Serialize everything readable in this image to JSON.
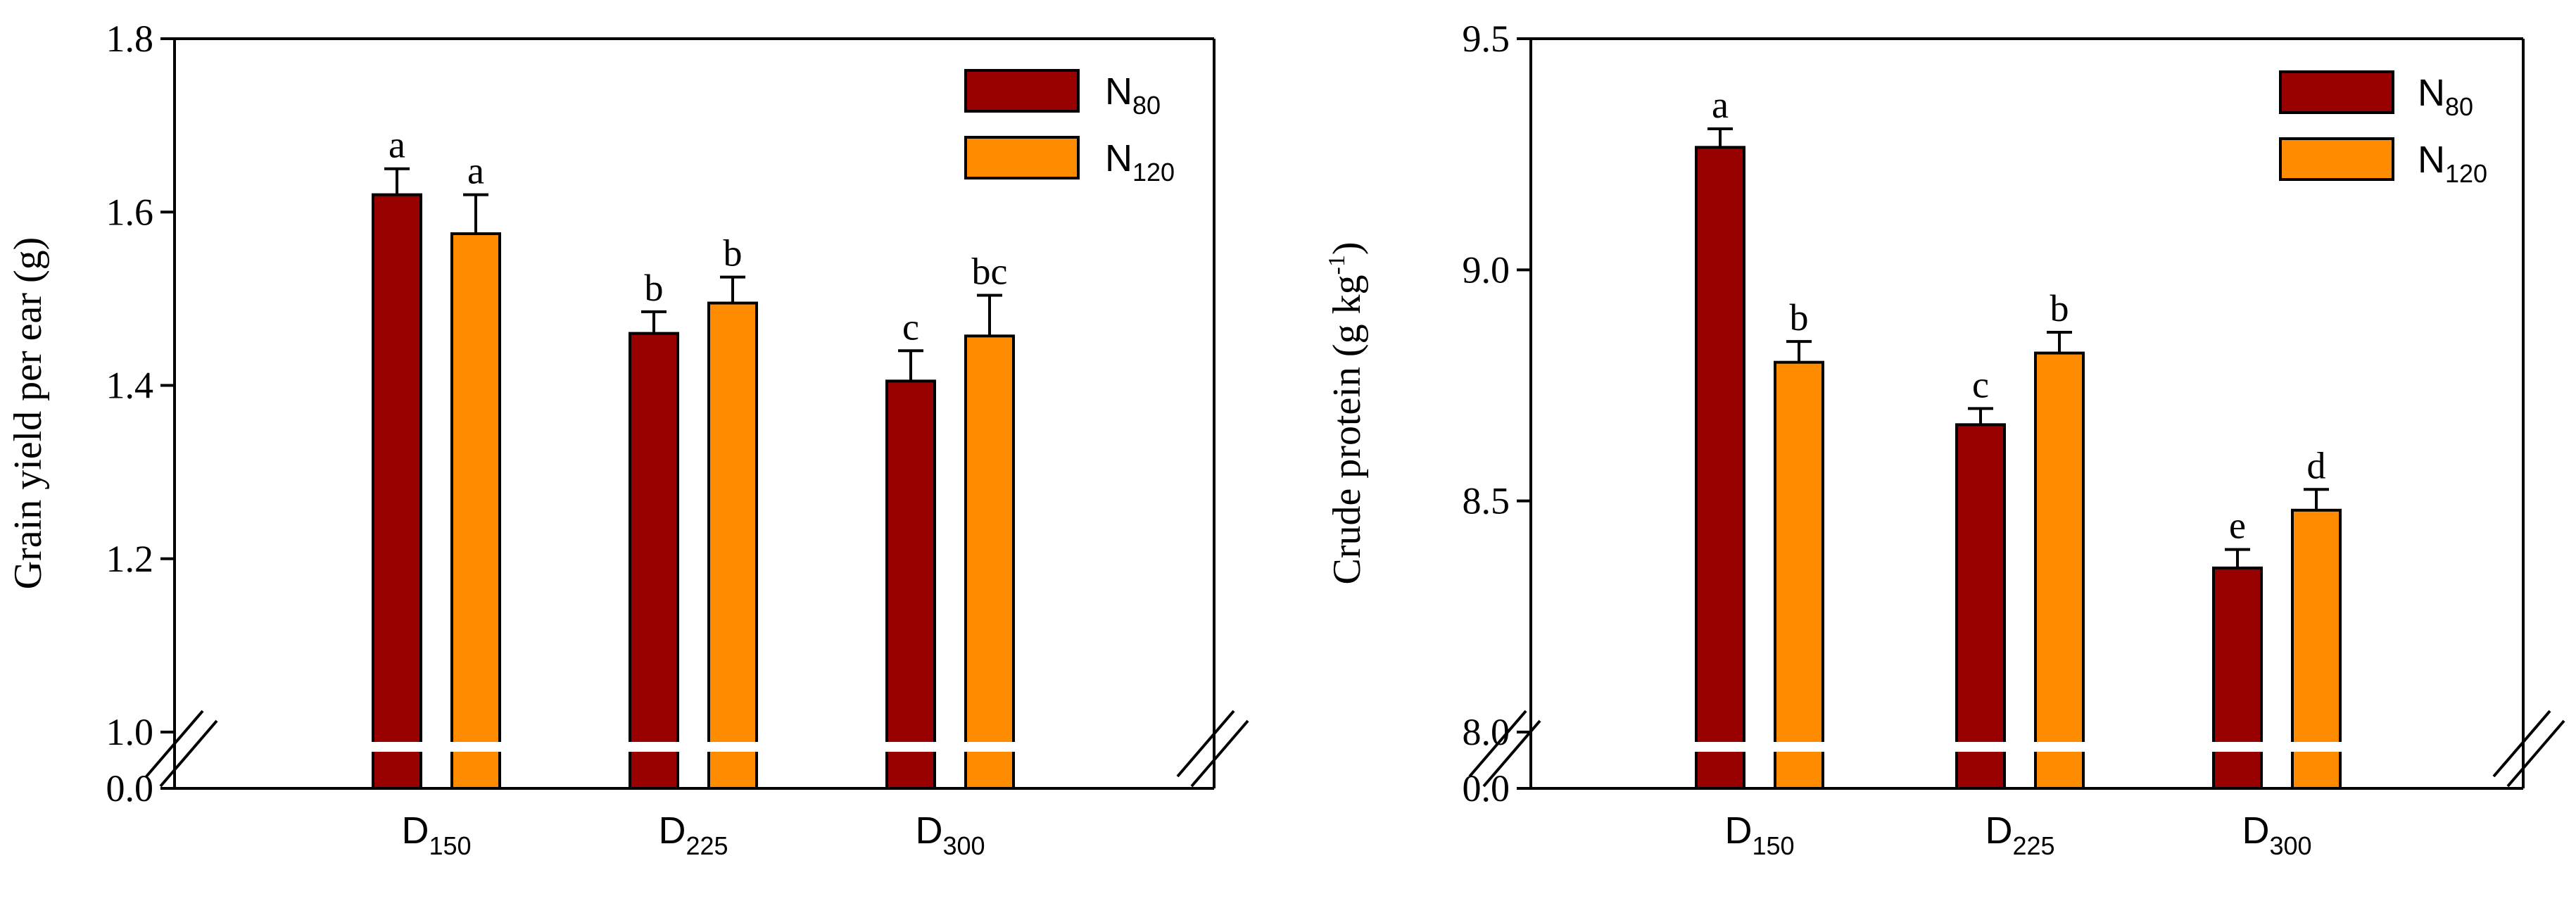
{
  "chart_data": [
    {
      "type": "bar",
      "ylabel": "Grain yield per ear (g)",
      "y_break": {
        "below": 0.0,
        "above": 1.0
      },
      "ylim": [
        1.0,
        1.8
      ],
      "yticks": [
        1.0,
        1.2,
        1.4,
        1.6,
        1.8
      ],
      "ytick_labels": [
        "1.0",
        "1.2",
        "1.4",
        "1.6",
        "1.8"
      ],
      "zero_label": "0.0",
      "categories": [
        {
          "base": "D",
          "sub": "150"
        },
        {
          "base": "D",
          "sub": "225"
        },
        {
          "base": "D",
          "sub": "300"
        }
      ],
      "series": [
        {
          "name_base": "N",
          "name_sub": "80",
          "color": "#990000",
          "values": [
            1.62,
            1.46,
            1.405
          ],
          "errors": [
            0.03,
            0.025,
            0.035
          ],
          "labels": [
            "a",
            "b",
            "c"
          ]
        },
        {
          "name_base": "N",
          "name_sub": "120",
          "color": "#ff8c00",
          "values": [
            1.575,
            1.495,
            1.457
          ],
          "errors": [
            0.045,
            0.03,
            0.047
          ],
          "labels": [
            "a",
            "b",
            "bc"
          ]
        }
      ],
      "legend_position": "top-right"
    },
    {
      "type": "bar",
      "ylabel_main": "Crude protein (g kg",
      "ylabel_sup": "-1",
      "ylabel_end": ")",
      "y_break": {
        "below": 0.0,
        "above": 8.0
      },
      "ylim": [
        8.0,
        9.5
      ],
      "yticks": [
        8.0,
        8.5,
        9.0,
        9.5
      ],
      "ytick_labels": [
        "8.0",
        "8.5",
        "9.0",
        "9.5"
      ],
      "zero_label": "0.0",
      "categories": [
        {
          "base": "D",
          "sub": "150"
        },
        {
          "base": "D",
          "sub": "225"
        },
        {
          "base": "D",
          "sub": "300"
        }
      ],
      "series": [
        {
          "name_base": "N",
          "name_sub": "80",
          "color": "#990000",
          "values": [
            9.265,
            8.665,
            8.355
          ],
          "errors": [
            0.04,
            0.035,
            0.04
          ],
          "labels": [
            "a",
            "c",
            "e"
          ]
        },
        {
          "name_base": "N",
          "name_sub": "120",
          "color": "#ff8c00",
          "values": [
            8.8,
            8.82,
            8.48
          ],
          "errors": [
            0.045,
            0.045,
            0.045
          ],
          "labels": [
            "b",
            "b",
            "d"
          ]
        }
      ],
      "legend_position": "top-right"
    }
  ]
}
